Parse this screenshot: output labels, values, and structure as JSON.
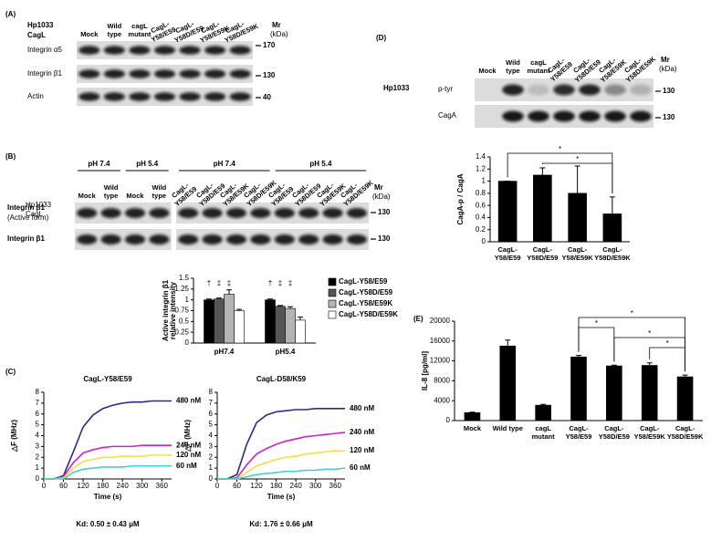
{
  "panels": {
    "A": {
      "label": "(A)",
      "strain": "Hp1033",
      "protein": "CagL",
      "lanes": [
        "Mock",
        "Wild type",
        "cagL mutant",
        "CagL-Y58/E59",
        "CagL-Y58D/E59",
        "CagL-Y58/E59K",
        "CagL-Y58D/E59K"
      ],
      "mr": "Mr",
      "mr_unit": "(kDa)",
      "rows": [
        {
          "label": "Integrin α5",
          "marker": 170
        },
        {
          "label": "Integrin β1",
          "marker": 130
        },
        {
          "label": "Actin",
          "marker": 40
        }
      ]
    },
    "B": {
      "label": "(B)",
      "strain": "Hp1033",
      "protein": "CagL",
      "groups": [
        {
          "label": "pH 7.4",
          "lanes": [
            "Mock",
            "Wild type"
          ]
        },
        {
          "label": "pH 5.4",
          "lanes": [
            "Mock",
            "Wild type"
          ]
        },
        {
          "label": "pH 7.4",
          "lanes": [
            "CagL-Y58/E59",
            "CagL-Y58D/E59",
            "CagL-Y58/E59K",
            "CagL-Y58D/E59K"
          ]
        },
        {
          "label": "pH 5.4",
          "lanes": [
            "CagL-Y58/E59",
            "CagL-Y58D/E59",
            "CagL-Y58/E59K",
            "CagL-Y58D/E59K"
          ]
        }
      ],
      "mr": "Mr",
      "mr_unit": "(kDa)",
      "rows": [
        {
          "label": "Integrin β1",
          "sublabel": "(Active form)",
          "marker": 130
        },
        {
          "label": "Integrin β1",
          "marker": 130
        }
      ]
    },
    "C": {
      "label": "(C)"
    },
    "D": {
      "label": "(D)",
      "strain": "Hp1033",
      "lanes": [
        "Mock",
        "Wild type",
        "cagL mutant",
        "CagL-Y58/E59",
        "CagL-Y58D/E59",
        "CagL-Y58/E59K",
        "CagL-Y58D/E59K"
      ],
      "mr": "Mr",
      "mr_unit": "(kDa)",
      "rows": [
        {
          "label": "p-tyr",
          "marker": 130
        },
        {
          "label": "CagA",
          "marker": 130
        }
      ]
    },
    "E": {
      "label": "(E)"
    }
  },
  "chart_data": [
    {
      "type": "bar",
      "ylabel": [
        "Active integrin β1",
        "relative intensity"
      ],
      "categories": [
        "pH7.4",
        "pH5.4"
      ],
      "series": [
        {
          "name": "CagL-Y58/E59",
          "color": "#000000",
          "values": [
            1,
            1
          ],
          "errors": [
            0.02,
            0.02
          ],
          "marks": [
            "†",
            "†"
          ]
        },
        {
          "name": "CagL-Y58D/E59",
          "color": "#555555",
          "values": [
            1.02,
            0.85
          ],
          "errors": [
            0.02,
            0.02
          ],
          "marks": [
            "‡",
            "‡"
          ]
        },
        {
          "name": "CagL-Y58/E59K",
          "color": "#b4b4b4",
          "values": [
            1.13,
            0.8
          ],
          "errors": [
            0.1,
            0.04
          ],
          "marks": [
            "‡",
            "‡"
          ]
        },
        {
          "name": "CagL-Y58D/E59K",
          "color": "#ffffff",
          "values": [
            0.75,
            0.53
          ],
          "errors": [
            0.03,
            0.07
          ]
        }
      ],
      "ylim": [
        0,
        1.5
      ],
      "yticks": [
        0,
        0.25,
        0.5,
        0.75,
        1,
        1.25,
        1.5
      ],
      "legend": "right"
    },
    {
      "type": "line",
      "title": "CagL-Y58/E59",
      "xlabel": "Time (s)",
      "ylabel": "△F (MHz)",
      "note": "Kd: 0.50 ± 0.43 μM",
      "x": [
        0,
        30,
        60,
        90,
        120,
        150,
        180,
        210,
        240,
        270,
        300,
        330,
        360,
        390
      ],
      "series": [
        {
          "name": "480 nM",
          "color": "#2a2a8a",
          "values": [
            0,
            0,
            0.3,
            2.5,
            4.8,
            5.9,
            6.5,
            6.8,
            7.0,
            7.1,
            7.1,
            7.2,
            7.2,
            7.2
          ]
        },
        {
          "name": "240 nM",
          "color": "#d020d0",
          "values": [
            0,
            0,
            0.2,
            1.5,
            2.4,
            2.7,
            2.9,
            3.0,
            3.0,
            3.0,
            3.1,
            3.1,
            3.1,
            3.1
          ]
        },
        {
          "name": "120 nM",
          "color": "#f0e040",
          "values": [
            0,
            0,
            0.1,
            1.0,
            1.6,
            1.8,
            2.0,
            2.0,
            2.1,
            2.1,
            2.1,
            2.2,
            2.2,
            2.2
          ]
        },
        {
          "name": "60 nM",
          "color": "#40d0d0",
          "values": [
            0,
            0,
            0,
            0.6,
            0.9,
            1.0,
            1.1,
            1.1,
            1.1,
            1.2,
            1.2,
            1.2,
            1.2,
            1.2
          ]
        }
      ],
      "xlim": [
        0,
        390
      ],
      "xticks": [
        0,
        60,
        120,
        180,
        240,
        300,
        360
      ],
      "ylim": [
        0,
        8
      ],
      "yticks": [
        0,
        1,
        2,
        3,
        4,
        5,
        6,
        7,
        8
      ]
    },
    {
      "type": "line",
      "title": "CagL-D58/K59",
      "xlabel": "Time (s)",
      "ylabel": "△F (MHz)",
      "note": "Kd: 1.76 ± 0.66 μM",
      "x": [
        0,
        30,
        60,
        90,
        120,
        150,
        180,
        210,
        240,
        270,
        300,
        330,
        360,
        390
      ],
      "series": [
        {
          "name": "480 nM",
          "color": "#2a2a8a",
          "values": [
            0,
            0,
            0.4,
            3.2,
            5.2,
            5.9,
            6.2,
            6.3,
            6.4,
            6.4,
            6.5,
            6.5,
            6.5,
            6.5
          ]
        },
        {
          "name": "240 nM",
          "color": "#d020d0",
          "values": [
            0,
            0,
            0.1,
            1.3,
            2.3,
            2.8,
            3.2,
            3.5,
            3.7,
            3.9,
            4.0,
            4.1,
            4.2,
            4.3
          ]
        },
        {
          "name": "120 nM",
          "color": "#f0e040",
          "values": [
            0,
            0,
            0,
            0.6,
            1.2,
            1.5,
            1.8,
            2.0,
            2.1,
            2.3,
            2.4,
            2.5,
            2.6,
            2.6
          ]
        },
        {
          "name": "60 nM",
          "color": "#40d0d0",
          "values": [
            0,
            0,
            0,
            0.2,
            0.4,
            0.5,
            0.6,
            0.7,
            0.7,
            0.8,
            0.8,
            0.9,
            0.9,
            1.0
          ]
        }
      ],
      "xlim": [
        0,
        390
      ],
      "xticks": [
        0,
        60,
        120,
        180,
        240,
        300,
        360
      ],
      "ylim": [
        0,
        8
      ],
      "yticks": [
        0,
        1,
        2,
        3,
        4,
        5,
        6,
        7,
        8
      ]
    },
    {
      "type": "bar",
      "ylabel": "CagA-p / CagA",
      "categories": [
        "CagL-Y58/E59",
        "CagL-Y58D/E59",
        "CagL-Y58/E59K",
        "CagL-Y58D/E59K"
      ],
      "values": [
        1,
        1.1,
        0.8,
        0.46
      ],
      "errors": [
        0,
        0.12,
        0.45,
        0.28
      ],
      "color": "#000000",
      "ylim": [
        0,
        1.4
      ],
      "yticks": [
        0,
        0.2,
        0.4,
        0.6,
        0.8,
        1,
        1.2,
        1.4
      ],
      "significance": [
        {
          "between": [
            0,
            3
          ],
          "label": "*"
        },
        {
          "between": [
            1,
            3
          ],
          "label": "*"
        }
      ]
    },
    {
      "type": "bar",
      "ylabel": "IL-8 [pg/ml]",
      "categories": [
        "Mock",
        "Wild type",
        "cagL mutant",
        "CagL-Y58/E59",
        "CagL-Y58D/E59",
        "CagL-Y58/E59K",
        "CagL-Y58D/E59K"
      ],
      "values": [
        1600,
        15000,
        3100,
        12800,
        11000,
        11100,
        8800
      ],
      "errors": [
        100,
        1200,
        150,
        300,
        150,
        500,
        350
      ],
      "color": "#000000",
      "ylim": [
        0,
        20000
      ],
      "yticks": [
        0,
        4000,
        8000,
        12000,
        16000,
        20000
      ],
      "significance": [
        {
          "between": [
            3,
            6
          ],
          "label": "*"
        },
        {
          "between": [
            3,
            4
          ],
          "label": "*"
        },
        {
          "between": [
            4,
            6
          ],
          "label": "*"
        },
        {
          "between": [
            5,
            6
          ],
          "label": "*"
        }
      ]
    }
  ]
}
